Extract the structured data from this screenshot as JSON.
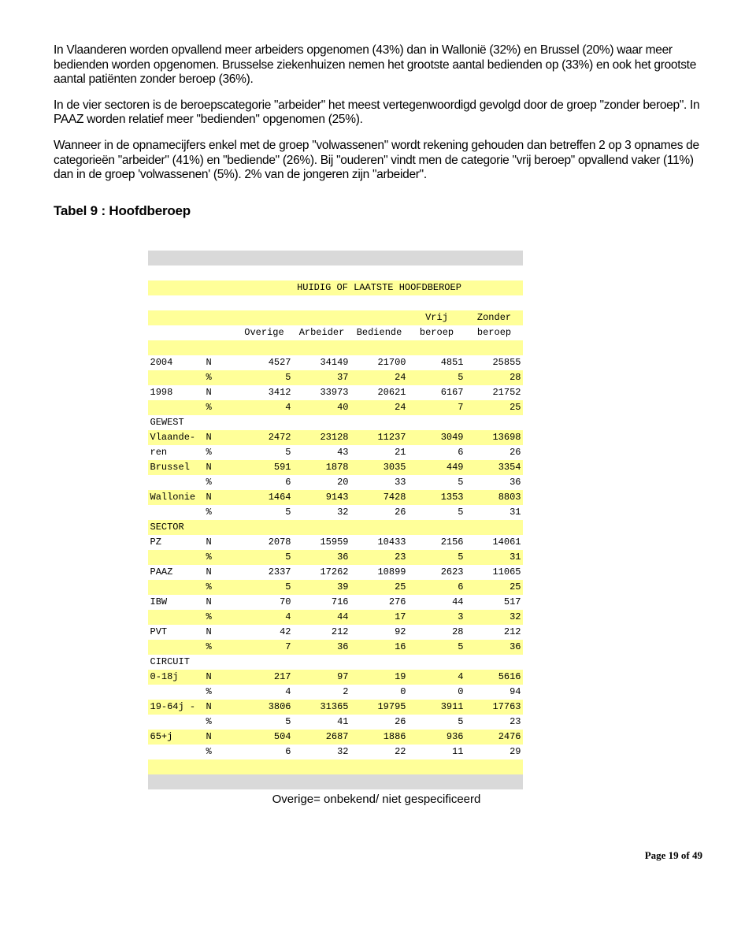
{
  "paragraphs": {
    "p1": "In Vlaanderen worden opvallend meer arbeiders opgenomen (43%) dan in Wallonië (32%) en Brussel (20%) waar meer bedienden worden opgenomen. Brusselse ziekenhuizen nemen het grootste aantal bedienden op (33%) en ook het grootste aantal patiënten zonder beroep (36%).",
    "p2": "In de vier sectoren is de beroepscategorie \"arbeider\" het meest vertegenwoordigd gevolgd door de groep \"zonder beroep\". In PAAZ worden relatief meer \"bedienden\" opgenomen (25%).",
    "p3": "Wanneer in de opnamecijfers enkel met de groep \"volwassenen\" wordt rekening gehouden dan betreffen 2 op 3 opnames de categorieën \"arbeider\" (41%) en \"bediende\" (26%). Bij \"ouderen\" vindt men de categorie \"vrij beroep\" opvallend vaker (11%) dan in de groep 'volwassenen' (5%). 2% van de jongeren zijn \"arbeider\"."
  },
  "heading": "Tabel 9 : Hoofdberoep",
  "table": {
    "title": "HUIDIG OF LAATSTE HOOFDBEROEP",
    "header_row1": {
      "c4": "Vrij",
      "c5": "Zonder"
    },
    "header_row2": {
      "c1": "Overige",
      "c2": "Arbeider",
      "c3": "Bediende",
      "c4": "beroep",
      "c5": "beroep"
    },
    "rows": [
      {
        "label": "2004",
        "stat": "N",
        "v": [
          "4527",
          "34149",
          "21700",
          "4851",
          "25855"
        ]
      },
      {
        "label": "",
        "stat": "%",
        "v": [
          "5",
          "37",
          "24",
          "5",
          "28"
        ]
      },
      {
        "label": "1998",
        "stat": "N",
        "v": [
          "3412",
          "33973",
          "20621",
          "6167",
          "21752"
        ]
      },
      {
        "label": "",
        "stat": "%",
        "v": [
          "4",
          "40",
          "24",
          "7",
          "25"
        ]
      },
      {
        "label": "GEWEST",
        "stat": "",
        "v": [
          "",
          "",
          "",
          "",
          ""
        ]
      },
      {
        "label": "Vlaande-",
        "stat": "N",
        "v": [
          "2472",
          "23128",
          "11237",
          "3049",
          "13698"
        ]
      },
      {
        "label": "ren",
        "stat": "%",
        "v": [
          "5",
          "43",
          "21",
          "6",
          "26"
        ]
      },
      {
        "label": "Brussel",
        "stat": "N",
        "v": [
          "591",
          "1878",
          "3035",
          "449",
          "3354"
        ]
      },
      {
        "label": "",
        "stat": "%",
        "v": [
          "6",
          "20",
          "33",
          "5",
          "36"
        ]
      },
      {
        "label": "Wallonie",
        "stat": "N",
        "v": [
          "1464",
          "9143",
          "7428",
          "1353",
          "8803"
        ]
      },
      {
        "label": "",
        "stat": "%",
        "v": [
          "5",
          "32",
          "26",
          "5",
          "31"
        ]
      },
      {
        "label": "SECTOR",
        "stat": "",
        "v": [
          "",
          "",
          "",
          "",
          ""
        ]
      },
      {
        "label": "PZ",
        "stat": "N",
        "v": [
          "2078",
          "15959",
          "10433",
          "2156",
          "14061"
        ]
      },
      {
        "label": "",
        "stat": "%",
        "v": [
          "5",
          "36",
          "23",
          "5",
          "31"
        ]
      },
      {
        "label": "PAAZ",
        "stat": "N",
        "v": [
          "2337",
          "17262",
          "10899",
          "2623",
          "11065"
        ]
      },
      {
        "label": "",
        "stat": "%",
        "v": [
          "5",
          "39",
          "25",
          "6",
          "25"
        ]
      },
      {
        "label": "IBW",
        "stat": "N",
        "v": [
          "70",
          "716",
          "276",
          "44",
          "517"
        ]
      },
      {
        "label": "",
        "stat": "%",
        "v": [
          "4",
          "44",
          "17",
          "3",
          "32"
        ]
      },
      {
        "label": "PVT",
        "stat": "N",
        "v": [
          "42",
          "212",
          "92",
          "28",
          "212"
        ]
      },
      {
        "label": "",
        "stat": "%",
        "v": [
          "7",
          "36",
          "16",
          "5",
          "36"
        ]
      },
      {
        "label": "CIRCUIT",
        "stat": "",
        "v": [
          "",
          "",
          "",
          "",
          ""
        ]
      },
      {
        "label": "0-18j",
        "stat": "N",
        "v": [
          "217",
          "97",
          "19",
          "4",
          "5616"
        ]
      },
      {
        "label": "",
        "stat": "%",
        "v": [
          "4",
          "2",
          "0",
          "0",
          "94"
        ]
      },
      {
        "label": "19-64j -",
        "stat": "N",
        "v": [
          "3806",
          "31365",
          "19795",
          "3911",
          "17763"
        ]
      },
      {
        "label": "",
        "stat": "%",
        "v": [
          "5",
          "41",
          "26",
          "5",
          "23"
        ]
      },
      {
        "label": "65+j",
        "stat": "N",
        "v": [
          "504",
          "2687",
          "1886",
          "936",
          "2476"
        ]
      },
      {
        "label": "",
        "stat": "%",
        "v": [
          "6",
          "32",
          "22",
          "11",
          "29"
        ]
      }
    ],
    "caption": "Overige= onbekend/ niet gespecificeerd"
  },
  "footer": "Page 19 of 49"
}
